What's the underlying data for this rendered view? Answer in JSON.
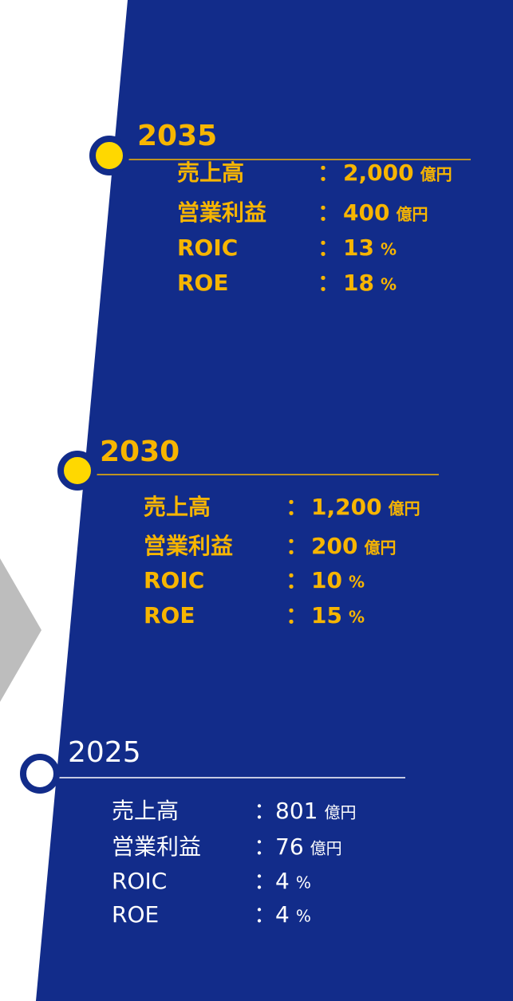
{
  "separator": "：",
  "milestones": [
    {
      "year": "2035",
      "items": [
        {
          "label": "売上高",
          "value": "2,000",
          "unit": "億円"
        },
        {
          "label": "営業利益",
          "value": "400",
          "unit": "億円"
        },
        {
          "label": "ROIC",
          "value": "13",
          "unit": "%"
        },
        {
          "label": "ROE",
          "value": "18",
          "unit": "%"
        }
      ]
    },
    {
      "year": "2030",
      "items": [
        {
          "label": "売上高",
          "value": "1,200",
          "unit": "億円"
        },
        {
          "label": "営業利益",
          "value": "200",
          "unit": "億円"
        },
        {
          "label": "ROIC",
          "value": "10",
          "unit": "%"
        },
        {
          "label": "ROE",
          "value": "15",
          "unit": "%"
        }
      ]
    },
    {
      "year": "2025",
      "items": [
        {
          "label": "売上高",
          "value": "801",
          "unit": "億円"
        },
        {
          "label": "営業利益",
          "value": "76",
          "unit": "億円"
        },
        {
          "label": "ROIC",
          "value": "4",
          "unit": "%"
        },
        {
          "label": "ROE",
          "value": "4",
          "unit": "%"
        }
      ]
    }
  ]
}
